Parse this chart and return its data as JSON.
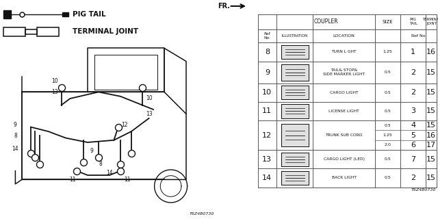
{
  "fr_label": "FR.",
  "diagram_code": "T6Z4B0730",
  "bg_color": "#ffffff",
  "table_line_color": "#555555",
  "text_color": "#111111",
  "pig_tail_label": "PIG TAIL",
  "terminal_joint_label": "TERMINAL JOINT",
  "coupler_label": "COUPLER",
  "size_label": "SIZE",
  "pig_tail_col": "PIG\nTAIL",
  "terminal_col": "TERMINAL\nJOINT",
  "ref_no_label": "Ref\nNo.",
  "illustration_label": "ILLUSTRATION",
  "location_label": "LOCATION",
  "ref_no_col": "Ref No",
  "rows": [
    {
      "ref": "8",
      "loc": "TURN L GHT",
      "single": true,
      "size": "1.25",
      "pt": "1",
      "tj": "16"
    },
    {
      "ref": "9",
      "loc": "TAIL& STOP&\nSIDE MARKER LIGHT",
      "single": true,
      "size": "0.5",
      "pt": "2",
      "tj": "15"
    },
    {
      "ref": "10",
      "loc": "CARGO LIGHT",
      "single": true,
      "size": "0.5",
      "pt": "2",
      "tj": "15"
    },
    {
      "ref": "11",
      "loc": "LICENSE LIGHT",
      "single": true,
      "size": "0.5",
      "pt": "3",
      "tj": "15"
    },
    {
      "ref": "12",
      "loc": "TRUNK SUB CORD",
      "single": false,
      "sub": [
        {
          "size": "0.5",
          "pt": "4",
          "tj": "15"
        },
        {
          "size": "1.25",
          "pt": "5",
          "tj": "16"
        },
        {
          "size": "2.0",
          "pt": "6",
          "tj": "17"
        }
      ]
    },
    {
      "ref": "13",
      "loc": "CARGO LIGHT (LED)",
      "single": true,
      "size": "0.5",
      "pt": "7",
      "tj": "15"
    },
    {
      "ref": "14",
      "loc": "BACK LIGHT",
      "single": true,
      "size": "0.5",
      "pt": "2",
      "tj": "15"
    }
  ]
}
